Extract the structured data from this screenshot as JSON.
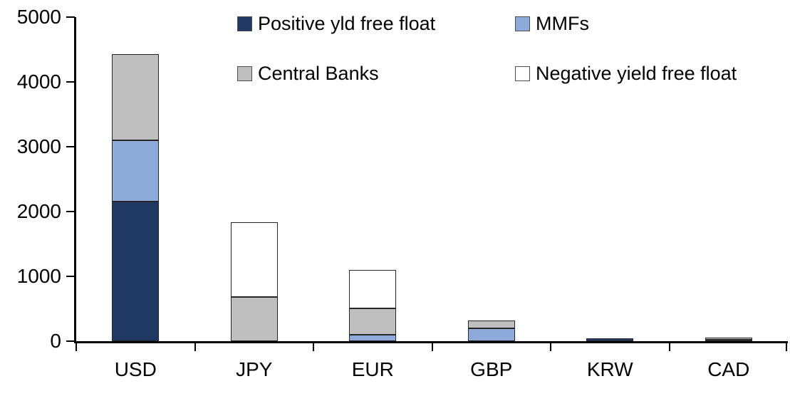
{
  "chart_data": {
    "type": "bar",
    "stacked": true,
    "title": "",
    "xlabel": "",
    "ylabel": "",
    "categories": [
      "USD",
      "JPY",
      "EUR",
      "GBP",
      "KRW",
      "CAD"
    ],
    "series": [
      {
        "name": "Positive yld free float",
        "color": "#1F3864",
        "values": [
          2150,
          0,
          0,
          0,
          40,
          25
        ]
      },
      {
        "name": "MMFs",
        "color": "#8EAADB",
        "values": [
          950,
          0,
          100,
          200,
          0,
          0
        ]
      },
      {
        "name": "Central Banks",
        "color": "#BFBFBF",
        "values": [
          1330,
          680,
          410,
          120,
          0,
          30
        ]
      },
      {
        "name": "Negative yield free float",
        "color": "#FFFFFF",
        "values": [
          0,
          1160,
          590,
          0,
          0,
          0
        ]
      }
    ],
    "totals": {
      "USD": 4430,
      "JPY": 1840,
      "EUR": 1100,
      "GBP": 320,
      "KRW": 40,
      "CAD": 55
    },
    "ylim": [
      0,
      5000
    ],
    "yticks": [
      0,
      1000,
      2000,
      3000,
      4000,
      5000
    ],
    "grid": false,
    "legend_position": "top",
    "axis_color": "#000000",
    "bar_border_color": "#262626",
    "text_color": "#000000"
  }
}
